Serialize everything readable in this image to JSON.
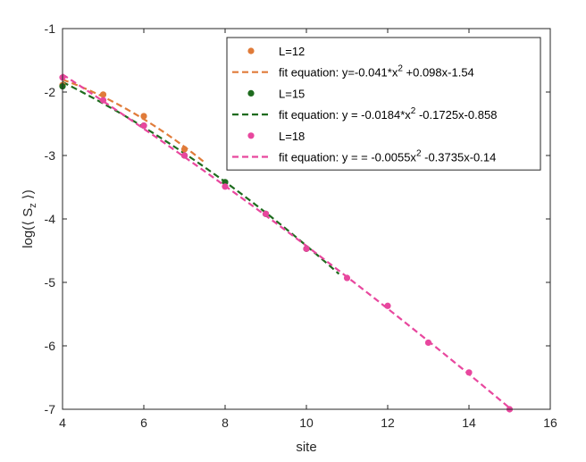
{
  "chart_data": {
    "type": "scatter",
    "xlabel": "site",
    "ylabel": "log(⟨ S",
    "ylabel_sub": "z",
    "ylabel_close": " ⟩)",
    "xlim": [
      4,
      16
    ],
    "ylim": [
      -7,
      -1
    ],
    "xticks": [
      "4",
      "6",
      "8",
      "10",
      "12",
      "14",
      "16"
    ],
    "yticks": [
      "-1",
      "-2",
      "-3",
      "-4",
      "-5",
      "-6",
      "-7"
    ],
    "grid": false,
    "legend_position": "top-right",
    "colors": {
      "L12": "#e07b39",
      "L15": "#1e6b1e",
      "L18": "#e8479e"
    },
    "series": [
      {
        "name": "L=12",
        "kind": "points",
        "color": "#e07b39",
        "x": [
          4,
          5,
          6,
          7
        ],
        "y": [
          -1.89,
          -2.04,
          -2.38,
          -2.9
        ]
      },
      {
        "name": "fit equation: y=-0.041*x",
        "name_sup": "2",
        "name_rest": " +0.098x-1.54",
        "kind": "fit",
        "color": "#e07b39",
        "coef": [
          -0.041,
          0.098,
          -1.54
        ],
        "range": [
          4,
          7.5
        ]
      },
      {
        "name": "L=15",
        "kind": "points",
        "color": "#1e6b1e",
        "x": [
          4,
          6,
          7,
          8,
          9,
          10
        ],
        "y": [
          -1.91,
          -2.53,
          -3.0,
          -3.42,
          -3.92,
          -4.47
        ]
      },
      {
        "name": "fit equation: y = -0.0184*x",
        "name_sup": "2",
        "name_rest": " -0.1725x-0.858",
        "kind": "fit",
        "color": "#1e6b1e",
        "coef": [
          -0.0184,
          -0.1725,
          -0.858
        ],
        "range": [
          4,
          10.8
        ]
      },
      {
        "name": "L=18",
        "kind": "points",
        "color": "#e8479e",
        "x": [
          4,
          5,
          6,
          7,
          8,
          9,
          10,
          11,
          12,
          13,
          14,
          15
        ],
        "y": [
          -1.77,
          -2.13,
          -2.53,
          -3.0,
          -3.49,
          -3.92,
          -4.47,
          -4.93,
          -5.37,
          -5.95,
          -6.42,
          -7.0
        ]
      },
      {
        "name": "fit equation: y = = -0.0055x",
        "name_sup": "2",
        "name_rest": " -0.3735x-0.14",
        "kind": "fit",
        "color": "#e8479e",
        "coef": [
          -0.0055,
          -0.3735,
          -0.14
        ],
        "range": [
          4,
          15
        ]
      }
    ]
  }
}
